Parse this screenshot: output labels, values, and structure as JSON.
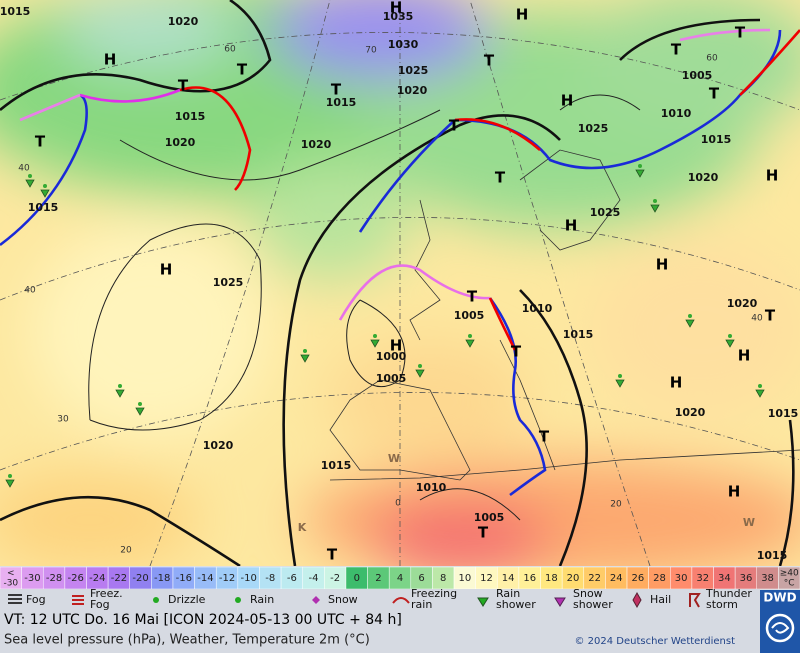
{
  "map": {
    "pressure_labels": [
      "1015",
      "1020",
      "1035",
      "1030",
      "1025",
      "1020",
      "1015",
      "1015",
      "1020",
      "1020",
      "1025",
      "1010",
      "1015",
      "1020",
      "1005",
      "1015",
      "1025",
      "1025",
      "1010",
      "1005",
      "1015",
      "1000",
      "1005",
      "1020",
      "1020",
      "1015",
      "1020",
      "1015",
      "1010",
      "1005",
      "1015"
    ],
    "temperature_labels": [
      "60",
      "70",
      "60",
      "40",
      "40",
      "30",
      "20",
      "40",
      "20",
      "0"
    ],
    "centers": [
      "H",
      "T",
      "T",
      "T",
      "T",
      "H",
      "H",
      "T",
      "T",
      "H",
      "T",
      "H",
      "H",
      "T",
      "T",
      "T",
      "H",
      "H",
      "T",
      "H",
      "H",
      "H",
      "T",
      "T",
      "T",
      "T",
      "H",
      "T",
      "K",
      "W",
      "W"
    ]
  },
  "colorbar": {
    "below_label": [
      "<",
      "-30"
    ],
    "below_color": "#e8b0f0",
    "values": [
      -30,
      -28,
      -26,
      -24,
      -22,
      -20,
      -18,
      -16,
      -14,
      -12,
      -10,
      -8,
      -6,
      -4,
      -2,
      0,
      2,
      4,
      6,
      8,
      10,
      12,
      14,
      16,
      18,
      20,
      22,
      24,
      26,
      28,
      30,
      32,
      34,
      36,
      38
    ],
    "colors": [
      "#dc9cf0",
      "#d090f0",
      "#c484f0",
      "#b87cf0",
      "#a878f0",
      "#9080f0",
      "#8898f4",
      "#90acf8",
      "#98bcf8",
      "#a0ccf8",
      "#a8d8f8",
      "#b4e2f4",
      "#bceaf0",
      "#c4f0ec",
      "#ccf4e4",
      "#3cbc6c",
      "#5cc878",
      "#7cd488",
      "#9cdc98",
      "#bce8a8",
      "#fbfad4",
      "#fff8c0",
      "#fff0a8",
      "#fff098",
      "#ffe880",
      "#ffdc70",
      "#ffcc68",
      "#ffbc60",
      "#ffac60",
      "#ff9c64",
      "#ff8c6c",
      "#f88070",
      "#f07474",
      "#e47c7c",
      "#d08c8c"
    ],
    "above_label": [
      "≥40",
      "°C"
    ],
    "above_color": "#c8a4a4"
  },
  "legend": {
    "items": [
      [
        "Fog"
      ],
      [
        "Freez.",
        "Fog"
      ],
      [
        "Drizzle"
      ],
      [
        "Rain"
      ],
      [
        "Snow"
      ],
      [
        "Freezing",
        "rain"
      ],
      [
        "Rain",
        "shower"
      ],
      [
        "Snow",
        "shower"
      ],
      [
        "Hail"
      ],
      [
        "Thunder",
        "storm"
      ]
    ]
  },
  "footer": {
    "valid_time": "VT: 12 UTC Do.  16 Mai [ICON 2024-05-13  00 UTC + 84 h]",
    "description": "Sea level pressure (hPa), Weather, Temperature 2m (°C)",
    "copyright": "© 2024 Deutscher Wetterdienst",
    "logo": "DWD"
  }
}
